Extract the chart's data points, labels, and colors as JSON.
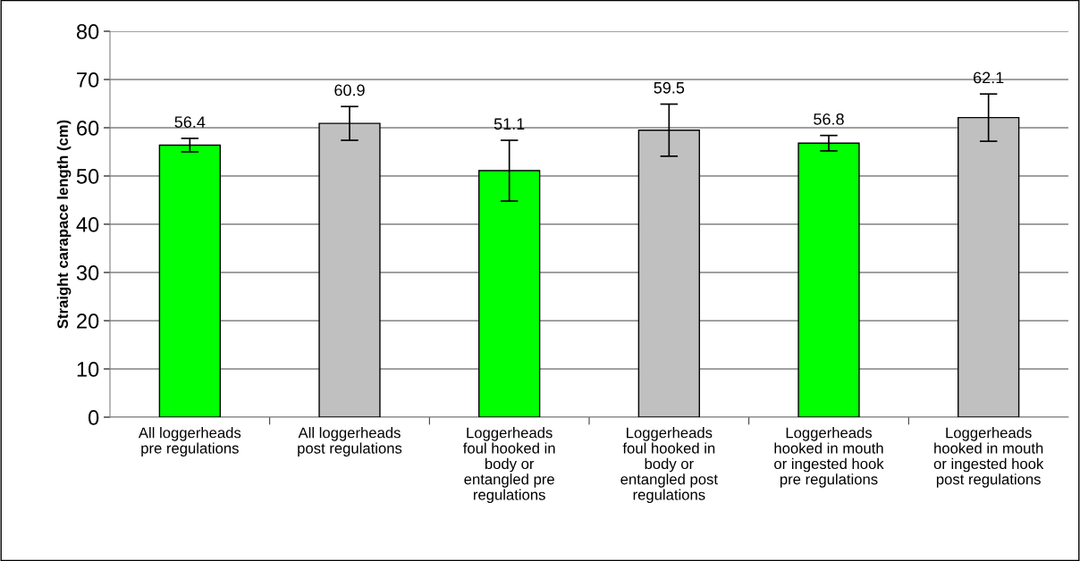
{
  "chart_data": {
    "type": "bar",
    "ylabel": "Straight carapace length (cm)",
    "categories": [
      "All loggerheads\npre regulations",
      "All loggerheads\npost regulations",
      "Loggerheads\nfoul hooked in\nbody or\nentangled pre\nregulations",
      "Loggerheads\nfoul hooked in\nbody or\nentangled post\nregulations",
      "Loggerheads\nhooked in mouth\nor ingested hook\npre regulations",
      "Loggerheads\nhooked in mouth\nor ingested hook\npost regulations"
    ],
    "values": [
      56.4,
      60.9,
      51.1,
      59.5,
      56.8,
      62.1
    ],
    "errors": [
      1.4,
      3.5,
      6.3,
      5.4,
      1.6,
      4.9
    ],
    "colors": [
      "#00ff00",
      "#c0c0c0",
      "#00ff00",
      "#c0c0c0",
      "#00ff00",
      "#c0c0c0"
    ],
    "data_labels": true,
    "grid": "y",
    "ylim": [
      0,
      80
    ],
    "yticks": [
      0,
      10,
      20,
      30,
      40,
      50,
      60,
      70,
      80
    ]
  }
}
